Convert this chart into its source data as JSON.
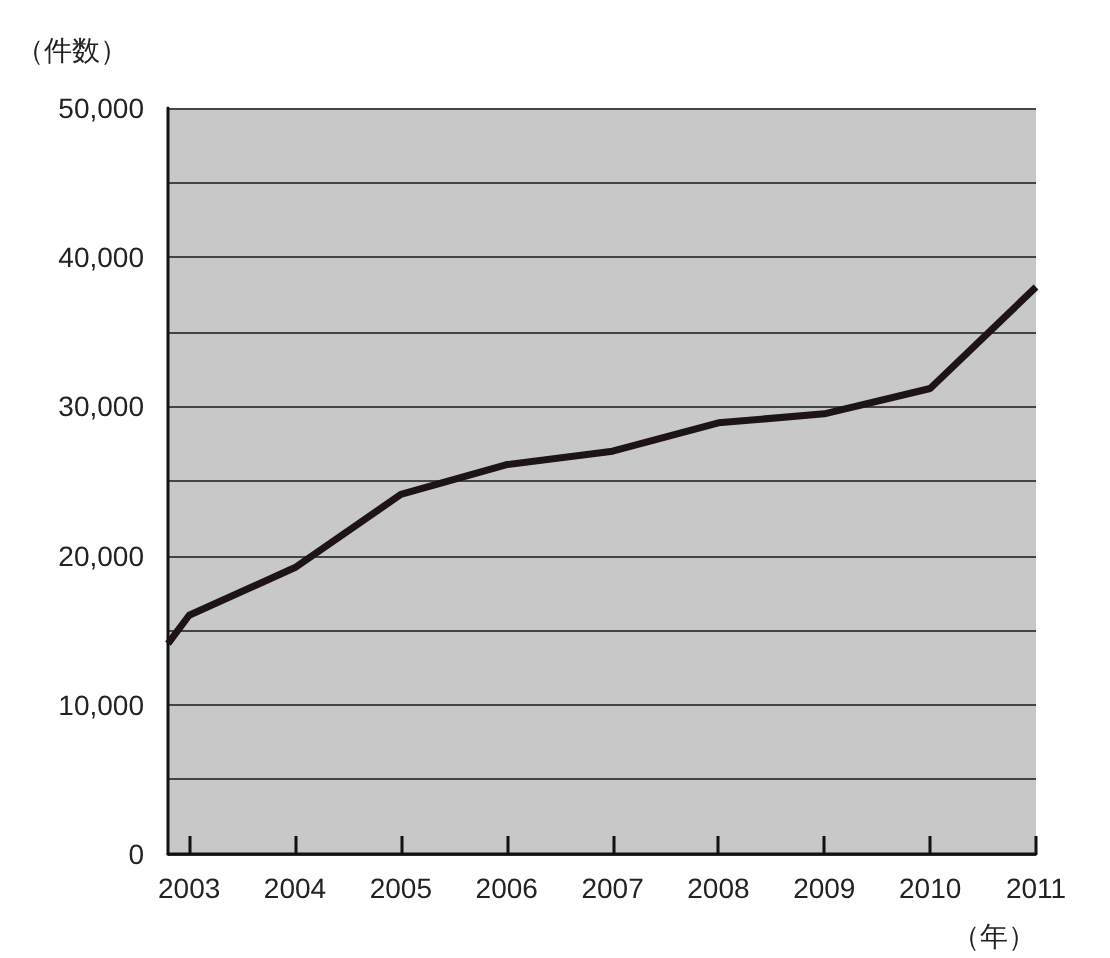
{
  "chart_data": {
    "type": "line",
    "ylabel": "（件数）",
    "xlabel": "（年）",
    "x": [
      2002.8,
      2003,
      2004,
      2005,
      2006,
      2007,
      2008,
      2009,
      2010,
      2011
    ],
    "series": [
      {
        "color": "#1e1416",
        "values": [
          14100,
          16000,
          19200,
          24100,
          26100,
          27000,
          28900,
          29500,
          31200,
          38000
        ]
      }
    ],
    "xlim": [
      2002.8,
      2011
    ],
    "xticks": [
      2003,
      2004,
      2005,
      2006,
      2007,
      2008,
      2009,
      2010,
      2011
    ],
    "ylim": [
      0,
      50000
    ],
    "yticks": [
      0,
      {
        "value": 5000,
        "label": null
      },
      {
        "value": 10000,
        "label": "10,000"
      },
      {
        "value": 15000,
        "label": null
      },
      {
        "value": 20000,
        "label": "20,000"
      },
      {
        "value": 25000,
        "label": null
      },
      {
        "value": 30000,
        "label": "30,000"
      },
      {
        "value": 35000,
        "label": null
      },
      {
        "value": 40000,
        "label": "40,000"
      },
      {
        "value": 45000,
        "label": null
      },
      {
        "value": 50000,
        "label": "50,000"
      }
    ],
    "grid": "y",
    "marker": "none",
    "line_style": "solid"
  }
}
